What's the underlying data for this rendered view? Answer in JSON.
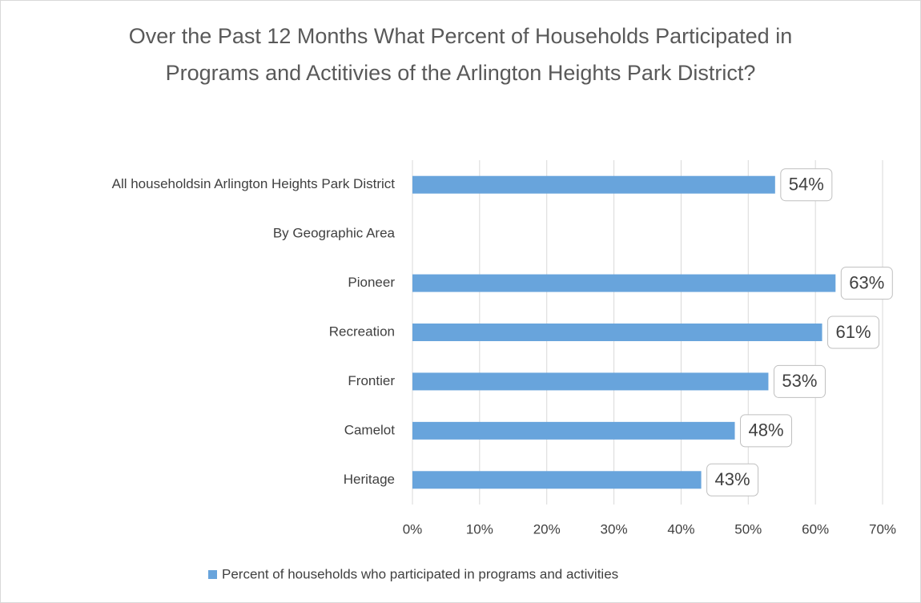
{
  "chart_data": {
    "type": "bar",
    "orientation": "horizontal",
    "title": "Over the Past 12 Months What Percent of Households Participated in Programs and Actitivies of the Arlington Heights Park District?",
    "categories": [
      "All householdsin Arlington Heights Park District",
      "By Geographic Area",
      "Pioneer",
      "Recreation",
      "Frontier",
      "Camelot",
      "Heritage"
    ],
    "series": [
      {
        "name": "Percent of households who participated in programs and activities",
        "color": "#68a4dc",
        "values": [
          54,
          null,
          63,
          61,
          53,
          48,
          43
        ],
        "value_labels": [
          "54%",
          null,
          "63%",
          "61%",
          "53%",
          "48%",
          "43%"
        ]
      }
    ],
    "xlim": [
      0,
      70
    ],
    "xticks": [
      {
        "value": 0,
        "label": "0%"
      },
      {
        "value": 10,
        "label": "10%"
      },
      {
        "value": 20,
        "label": "20%"
      },
      {
        "value": 30,
        "label": "30%"
      },
      {
        "value": 40,
        "label": "40%"
      },
      {
        "value": 50,
        "label": "50%"
      },
      {
        "value": 60,
        "label": "60%"
      },
      {
        "value": 70,
        "label": "70%"
      }
    ],
    "grid": true,
    "legend": "bottom"
  }
}
